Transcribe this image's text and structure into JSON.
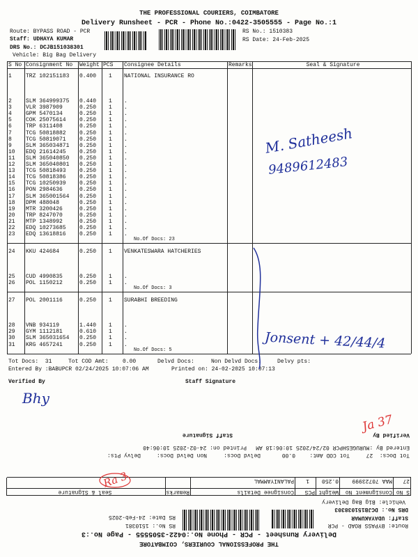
{
  "page1": {
    "title": "THE PROFESSIONAL COURIERS, COIMBATORE",
    "subtitle": "Delivery Runsheet - PCR - Phone No.:0422-3505555 - Page No.:1",
    "route": "Route: BYPASS ROAD - PCR",
    "staff": "Staff: UDHAYA KUMAR",
    "drs_no": "DRS No.: DCJB151038301",
    "vehicle": "Vehicle: Big Bag Delivery",
    "rs_no": "RS No.: 1510383",
    "rs_date": "RS Date: 24-Feb-2025",
    "table": {
      "headers": [
        "S No",
        "Consignment No",
        "Weight",
        "PCS",
        "Consignee Details",
        "Remarks",
        "Seal & Signature"
      ],
      "groups": [
        {
          "rows": [
            [
              "1",
              "TRZ 102151183",
              "0.400",
              "1",
              "NATIONAL INSURANCE RO"
            ],
            [
              "2",
              "SLM 364999375",
              "0.440",
              "1",
              "."
            ],
            [
              "3",
              "VLR 3987909",
              "0.250",
              "1",
              "."
            ],
            [
              "4",
              "GPM 5470134",
              "0.250",
              "1",
              "."
            ],
            [
              "5",
              "COK 25075614",
              "0.250",
              "1",
              "."
            ],
            [
              "6",
              "TRP 6311408",
              "0.250",
              "1",
              "."
            ],
            [
              "7",
              "TCG 50818882",
              "0.250",
              "1",
              "."
            ],
            [
              "8",
              "TCG 50819071",
              "0.250",
              "1",
              "."
            ],
            [
              "9",
              "SLM 365034871",
              "0.250",
              "1",
              "."
            ],
            [
              "10",
              "EDQ 21614245",
              "0.250",
              "1",
              "."
            ],
            [
              "11",
              "SLM 365040850",
              "0.250",
              "1",
              "."
            ],
            [
              "12",
              "SLM 365040801",
              "0.250",
              "1",
              "."
            ],
            [
              "13",
              "TCG 50818493",
              "0.250",
              "1",
              "."
            ],
            [
              "14",
              "TCG 50818386",
              "0.250",
              "1",
              "."
            ],
            [
              "15",
              "TCG 10250939",
              "0.250",
              "1",
              "."
            ],
            [
              "16",
              "PON 2984636",
              "0.250",
              "1",
              "."
            ],
            [
              "17",
              "SLM 365001564",
              "0.250",
              "1",
              "."
            ],
            [
              "18",
              "DPM 488048",
              "0.250",
              "1",
              "."
            ],
            [
              "19",
              "MTR 3200426",
              "0.250",
              "1",
              "."
            ],
            [
              "20",
              "TRP 8247070",
              "0.250",
              "1",
              "."
            ],
            [
              "21",
              "MTP 1348992",
              "0.250",
              "1",
              "."
            ],
            [
              "22",
              "EDQ 10273685",
              "0.250",
              "1",
              "."
            ],
            [
              "23",
              "EDQ 13618816",
              "0.250",
              "1",
              "."
            ]
          ],
          "docs": "No.Of Docs: 23"
        },
        {
          "rows": [
            [
              "24",
              "KKU 424684",
              "0.250",
              "1",
              "VENKATESWARA HATCHERIES"
            ],
            [
              "25",
              "CUD 4990835",
              "0.250",
              "1",
              "."
            ],
            [
              "26",
              "POL 1150212",
              "0.250",
              "1",
              "."
            ]
          ],
          "docs": "No.Of Docs: 3"
        },
        {
          "rows": [
            [
              "27",
              "POL 2001116",
              "0.250",
              "1",
              "SURABHI BREEDING"
            ],
            [
              "28",
              "VNB 934119",
              "1.440",
              "1",
              "."
            ],
            [
              "29",
              "GYM 1112181",
              "0.610",
              "1",
              "."
            ],
            [
              "30",
              "SLM 365031654",
              "0.250",
              "1",
              "."
            ],
            [
              "31",
              "KRG 4657241",
              "0.250",
              "1",
              "."
            ]
          ],
          "docs": "No.Of Docs: 5"
        }
      ]
    },
    "footer": {
      "tot_docs": "Tot Docs:  31",
      "tot_cod": "Tot COD Amt:",
      "cod_amount": "0.00",
      "delvd": "Delvd Docs:",
      "non_delvd": "Non Delvd Docs:",
      "delvy": "Delvy pts:",
      "entered": "Entered By :BABUPCR 02/24/2025 10:07:06 AM",
      "printed": "Printed on: 24-02-2025 10:07:13",
      "verified": "Verified By",
      "staff_signature": "Staff Signature"
    }
  },
  "page3": {
    "title": "THE PROFESSIONAL COURIERS, COIMBATORE",
    "subtitle": "Delivery Runsheet - PCR - Phone No.:0422-3505555 - Page No.:3",
    "route": "Route: BYPASS ROAD - PCR",
    "staff": "Staff: UDAYAKUMAR",
    "drs_no": "DRS No.: DCJB151038303",
    "vehicle": "Vehicle: Big Bag Delivery",
    "rs_no": "RS No.: 1510381",
    "rs_date": "RS Date: 24-Feb-2025",
    "table": {
      "headers": [
        "S No",
        "Consignment No",
        "Weight",
        "PCS",
        "Consignee Details",
        "Remarks",
        "Seal & Signature"
      ],
      "groups": [
        {
          "rows": [
            [
              "27",
              "MAA 70723999",
              "0.250",
              "1",
              "PALANIYAMMAL"
            ]
          ]
        }
      ]
    },
    "footer": {
      "tot_docs": "Tot Docs:  27",
      "tot_cod": "Tot COD Amt:",
      "cod_amount": "0.00",
      "delvd": "Delvd Docs:",
      "non_delvd": "Non Delvd Docs:",
      "delvy": "Delvy Pts:",
      "entered": "Entered By :MURUGESHPCR 02/24/2025 10:06:18 AM",
      "printed": "Printed on: 24-02-2025 10:06:40",
      "verified": "Verified By",
      "staff_signature": "Staff Signature"
    }
  },
  "handwriting": [
    "M. Satheesh",
    "9489612483",
    "Jonsent + 42/44/4",
    "Bhy",
    "Ja 37",
    "Ra 3"
  ]
}
